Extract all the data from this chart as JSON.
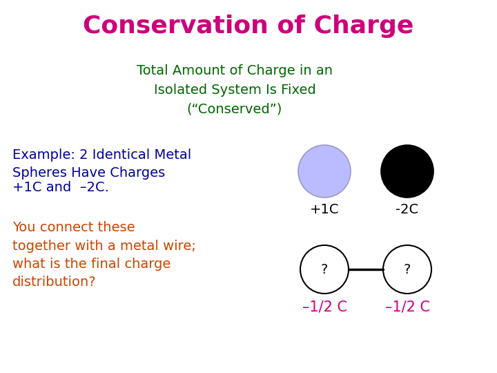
{
  "title": "Conservation of Charge",
  "title_color": "#CC007A",
  "subtitle": "Total Amount of Charge in an\nIsolated System Is Fixed\n(“Conserved”)",
  "subtitle_color": "#006600",
  "example_text": "Example: 2 Identical Metal\nSpheres Have Charges",
  "example_color": "#000099",
  "plus_minus_text": "+1C and  –2C.",
  "plus_minus_color": "#000099",
  "connect_text": "You connect these\ntogether with a metal wire;\nwhat is the final charge\ndistribution?",
  "connect_color": "#CC4400",
  "sphere1_color": "#BBBBFF",
  "sphere1_edge": "#9999CC",
  "sphere2_color": "#000000",
  "sphere2_edge": "#000000",
  "sphere3_color": "#FFFFFF",
  "sphere3_edge": "#000000",
  "sphere4_color": "#FFFFFF",
  "sphere4_edge": "#000000",
  "label_plus1c": "+1C",
  "label_minus2c": "-2C",
  "label_q1": "?",
  "label_q2": "?",
  "label_ans1": "–1/2 C",
  "label_ans2": "–1/2 C",
  "ans_color": "#CC007A",
  "label_top_color": "#000000",
  "background_color": "#FFFFFF",
  "title_fontsize": 26,
  "subtitle_fontsize": 14,
  "body_fontsize": 14,
  "sphere_label_fontsize": 14,
  "ans_fontsize": 15
}
